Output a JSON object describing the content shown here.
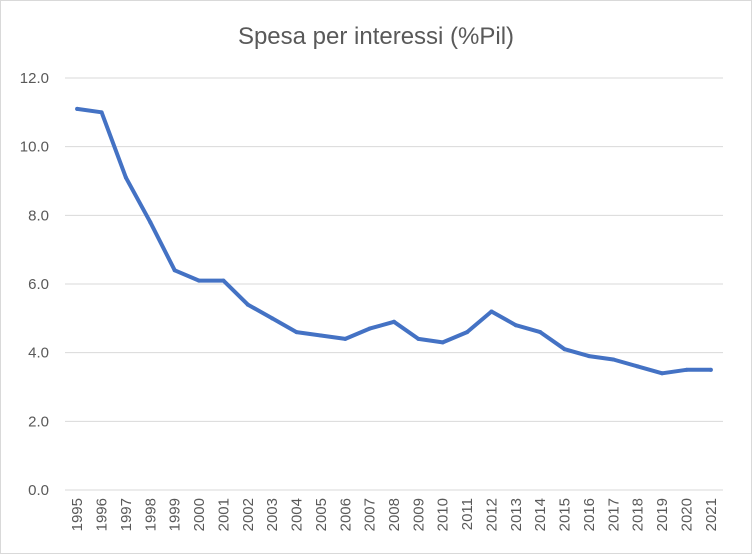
{
  "chart_data": {
    "type": "line",
    "title": "Spesa per interessi (%Pil)",
    "xlabel": "",
    "ylabel": "",
    "ylim": [
      0,
      12
    ],
    "yticks": [
      "0.0",
      "2.0",
      "4.0",
      "6.0",
      "8.0",
      "10.0",
      "12.0"
    ],
    "grid": true,
    "legend": "none",
    "categories": [
      "1995",
      "1996",
      "1997",
      "1998",
      "1999",
      "2000",
      "2001",
      "2002",
      "2003",
      "2004",
      "2005",
      "2006",
      "2007",
      "2008",
      "2009",
      "2010",
      "2011",
      "2012",
      "2013",
      "2014",
      "2015",
      "2016",
      "2017",
      "2018",
      "2019",
      "2020",
      "2021"
    ],
    "series": [
      {
        "color": "#4472c4",
        "values": [
          11.1,
          11.0,
          9.1,
          7.8,
          6.4,
          6.1,
          6.1,
          5.4,
          5.0,
          4.6,
          4.5,
          4.4,
          4.7,
          4.9,
          4.4,
          4.3,
          4.6,
          5.2,
          4.8,
          4.6,
          4.1,
          3.9,
          3.8,
          3.6,
          3.4,
          3.5,
          3.5
        ]
      }
    ],
    "gridline_color": "#d9d9d9",
    "text_color": "#595959"
  }
}
